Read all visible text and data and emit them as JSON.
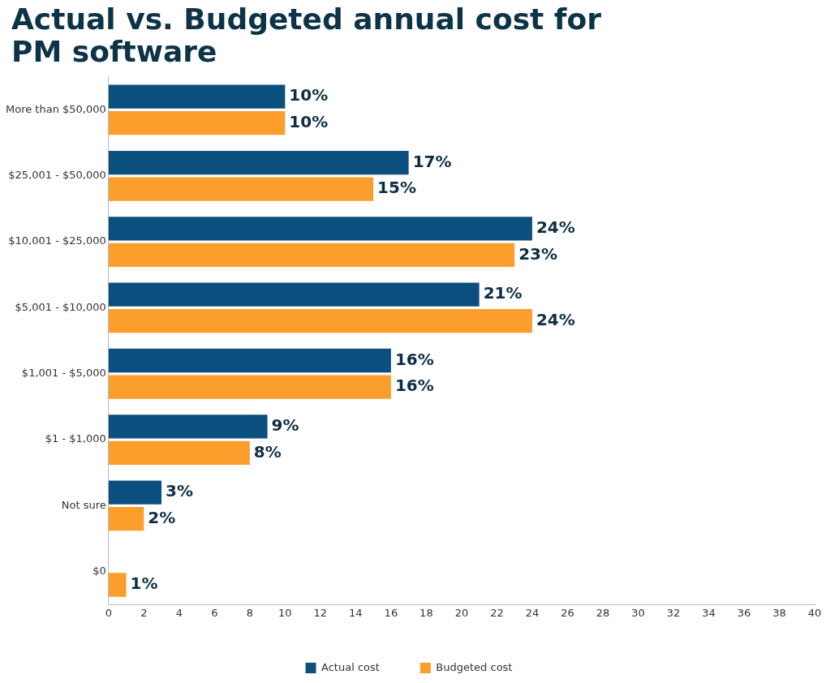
{
  "chart_data": {
    "type": "bar",
    "orientation": "horizontal",
    "title": "Actual vs. Budgeted annual cost for PM software",
    "categories": [
      "More than $50,000",
      "$25,001 - $50,000",
      "$10,001 - $25,000",
      "$5,001 - $10,000",
      "$1,001 - $5,000",
      "$1 - $1,000",
      "Not sure",
      "$0"
    ],
    "series": [
      {
        "name": "Actual cost",
        "color": "#0b4f7f",
        "values": [
          10,
          17,
          24,
          21,
          16,
          9,
          3,
          null
        ],
        "value_labels": [
          "10%",
          "17%",
          "24%",
          "21%",
          "16%",
          "9%",
          "3%",
          null
        ]
      },
      {
        "name": "Budgeted cost",
        "color": "#fb9e2c",
        "values": [
          10,
          15,
          23,
          24,
          16,
          8,
          2,
          1
        ],
        "value_labels": [
          "10%",
          "15%",
          "23%",
          "24%",
          "16%",
          "8%",
          "2%",
          "1%"
        ]
      }
    ],
    "xlim": [
      0,
      40
    ],
    "xticks": [
      0,
      2,
      4,
      6,
      8,
      10,
      12,
      14,
      16,
      18,
      20,
      22,
      24,
      26,
      28,
      30,
      32,
      34,
      36,
      38,
      40
    ],
    "grid": false,
    "legend": "bottom"
  }
}
